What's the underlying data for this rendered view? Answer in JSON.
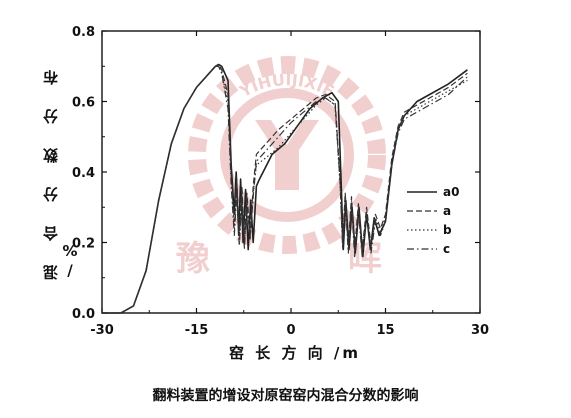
{
  "chart_data": {
    "type": "line",
    "title": "",
    "caption": "翻料装置的增设对原窑窑内混合分数的影响",
    "xlabel": "窑 长 方 向 /m",
    "ylabel": "混 合 分 数 分 布 /%",
    "xlim": [
      -30,
      30
    ],
    "ylim": [
      0.0,
      0.8
    ],
    "xticks": [
      "-30",
      "-15",
      "0",
      "15",
      "30"
    ],
    "yticks": [
      "0.0",
      "0.2",
      "0.4",
      "0.6",
      "0.8"
    ],
    "legend_position": "right-middle",
    "grid": false,
    "series": [
      {
        "name": "a0",
        "style": "solid",
        "color": "#222222",
        "points": [
          [
            -30,
            0.0
          ],
          [
            -27,
            0.0
          ],
          [
            -25,
            0.02
          ],
          [
            -23,
            0.12
          ],
          [
            -21,
            0.32
          ],
          [
            -19,
            0.48
          ],
          [
            -17,
            0.58
          ],
          [
            -15,
            0.64
          ],
          [
            -13,
            0.68
          ],
          [
            -12,
            0.7
          ],
          [
            -11.5,
            0.705
          ],
          [
            -11,
            0.7
          ],
          [
            -10,
            0.66
          ],
          [
            -9.5,
            0.42
          ],
          [
            -9,
            0.28
          ],
          [
            -8.7,
            0.4
          ],
          [
            -8.3,
            0.22
          ],
          [
            -8,
            0.38
          ],
          [
            -7.6,
            0.2
          ],
          [
            -7.2,
            0.35
          ],
          [
            -6.8,
            0.18
          ],
          [
            -6.4,
            0.32
          ],
          [
            -6,
            0.2
          ],
          [
            -5.5,
            0.36
          ],
          [
            -5,
            0.38
          ],
          [
            -3,
            0.45
          ],
          [
            -1,
            0.48
          ],
          [
            1,
            0.53
          ],
          [
            3,
            0.58
          ],
          [
            5,
            0.61
          ],
          [
            6.5,
            0.625
          ],
          [
            7.5,
            0.6
          ],
          [
            8,
            0.35
          ],
          [
            8.3,
            0.18
          ],
          [
            8.7,
            0.32
          ],
          [
            9.2,
            0.18
          ],
          [
            9.7,
            0.3
          ],
          [
            10.2,
            0.17
          ],
          [
            10.8,
            0.3
          ],
          [
            11.4,
            0.16
          ],
          [
            12,
            0.28
          ],
          [
            12.6,
            0.18
          ],
          [
            13.2,
            0.27
          ],
          [
            14,
            0.22
          ],
          [
            15,
            0.26
          ],
          [
            16,
            0.42
          ],
          [
            17,
            0.52
          ],
          [
            18,
            0.56
          ],
          [
            20,
            0.6
          ],
          [
            22,
            0.62
          ],
          [
            25,
            0.65
          ],
          [
            28,
            0.69
          ]
        ]
      },
      {
        "name": "a",
        "style": "dashed",
        "color": "#333333",
        "points": [
          [
            -30,
            0.0
          ],
          [
            -27,
            0.0
          ],
          [
            -25,
            0.02
          ],
          [
            -23,
            0.12
          ],
          [
            -21,
            0.32
          ],
          [
            -19,
            0.48
          ],
          [
            -17,
            0.58
          ],
          [
            -15,
            0.64
          ],
          [
            -13,
            0.68
          ],
          [
            -12,
            0.7
          ],
          [
            -11.5,
            0.705
          ],
          [
            -11,
            0.69
          ],
          [
            -10,
            0.62
          ],
          [
            -9.5,
            0.4
          ],
          [
            -9,
            0.26
          ],
          [
            -8.6,
            0.38
          ],
          [
            -8.2,
            0.22
          ],
          [
            -7.8,
            0.36
          ],
          [
            -7.4,
            0.2
          ],
          [
            -7,
            0.34
          ],
          [
            -6.5,
            0.22
          ],
          [
            -6,
            0.36
          ],
          [
            -5.5,
            0.45
          ],
          [
            -4,
            0.48
          ],
          [
            -2,
            0.52
          ],
          [
            0,
            0.55
          ],
          [
            2,
            0.58
          ],
          [
            4,
            0.61
          ],
          [
            5.5,
            0.62
          ],
          [
            7,
            0.6
          ],
          [
            7.8,
            0.38
          ],
          [
            8.2,
            0.2
          ],
          [
            8.6,
            0.34
          ],
          [
            9.1,
            0.19
          ],
          [
            9.6,
            0.33
          ],
          [
            10.1,
            0.18
          ],
          [
            10.7,
            0.31
          ],
          [
            11.3,
            0.18
          ],
          [
            12,
            0.3
          ],
          [
            12.7,
            0.19
          ],
          [
            13.4,
            0.28
          ],
          [
            14.2,
            0.24
          ],
          [
            15,
            0.28
          ],
          [
            16,
            0.44
          ],
          [
            17,
            0.53
          ],
          [
            18,
            0.57
          ],
          [
            20,
            0.59
          ],
          [
            22,
            0.61
          ],
          [
            25,
            0.64
          ],
          [
            28,
            0.68
          ]
        ]
      },
      {
        "name": "b",
        "style": "dotted",
        "color": "#333333",
        "points": [
          [
            -30,
            0.0
          ],
          [
            -27,
            0.0
          ],
          [
            -25,
            0.02
          ],
          [
            -23,
            0.12
          ],
          [
            -21,
            0.32
          ],
          [
            -19,
            0.48
          ],
          [
            -17,
            0.58
          ],
          [
            -15,
            0.64
          ],
          [
            -13,
            0.68
          ],
          [
            -12,
            0.7
          ],
          [
            -11.5,
            0.7
          ],
          [
            -11,
            0.68
          ],
          [
            -10,
            0.6
          ],
          [
            -9.5,
            0.38
          ],
          [
            -9,
            0.24
          ],
          [
            -8.6,
            0.36
          ],
          [
            -8.2,
            0.2
          ],
          [
            -7.8,
            0.34
          ],
          [
            -7.4,
            0.19
          ],
          [
            -7,
            0.32
          ],
          [
            -6.5,
            0.22
          ],
          [
            -6,
            0.34
          ],
          [
            -5.5,
            0.42
          ],
          [
            -4,
            0.44
          ],
          [
            -2,
            0.47
          ],
          [
            0,
            0.51
          ],
          [
            2,
            0.55
          ],
          [
            4,
            0.59
          ],
          [
            5.5,
            0.61
          ],
          [
            7,
            0.59
          ],
          [
            7.8,
            0.36
          ],
          [
            8.2,
            0.19
          ],
          [
            8.6,
            0.33
          ],
          [
            9.1,
            0.18
          ],
          [
            9.6,
            0.32
          ],
          [
            10.1,
            0.17
          ],
          [
            10.7,
            0.3
          ],
          [
            11.3,
            0.17
          ],
          [
            12,
            0.29
          ],
          [
            12.7,
            0.18
          ],
          [
            13.4,
            0.27
          ],
          [
            14.2,
            0.23
          ],
          [
            15,
            0.27
          ],
          [
            16,
            0.43
          ],
          [
            17,
            0.52
          ],
          [
            18,
            0.56
          ],
          [
            20,
            0.58
          ],
          [
            22,
            0.6
          ],
          [
            25,
            0.63
          ],
          [
            28,
            0.66
          ]
        ]
      },
      {
        "name": "c",
        "style": "dashdot",
        "color": "#333333",
        "points": [
          [
            -30,
            0.0
          ],
          [
            -27,
            0.0
          ],
          [
            -25,
            0.02
          ],
          [
            -23,
            0.12
          ],
          [
            -21,
            0.32
          ],
          [
            -19,
            0.48
          ],
          [
            -17,
            0.58
          ],
          [
            -15,
            0.64
          ],
          [
            -13,
            0.68
          ],
          [
            -12,
            0.7
          ],
          [
            -11.5,
            0.7
          ],
          [
            -11,
            0.68
          ],
          [
            -10,
            0.58
          ],
          [
            -9.5,
            0.36
          ],
          [
            -9,
            0.22
          ],
          [
            -8.6,
            0.34
          ],
          [
            -8.2,
            0.19
          ],
          [
            -7.8,
            0.33
          ],
          [
            -7.4,
            0.18
          ],
          [
            -7,
            0.31
          ],
          [
            -6.5,
            0.21
          ],
          [
            -6,
            0.33
          ],
          [
            -5.5,
            0.43
          ],
          [
            -4,
            0.46
          ],
          [
            -2,
            0.5
          ],
          [
            0,
            0.54
          ],
          [
            2,
            0.57
          ],
          [
            4,
            0.6
          ],
          [
            5.5,
            0.61
          ],
          [
            7,
            0.59
          ],
          [
            7.8,
            0.37
          ],
          [
            8.2,
            0.18
          ],
          [
            8.6,
            0.32
          ],
          [
            9.1,
            0.17
          ],
          [
            9.6,
            0.31
          ],
          [
            10.1,
            0.16
          ],
          [
            10.7,
            0.29
          ],
          [
            11.3,
            0.16
          ],
          [
            12,
            0.28
          ],
          [
            12.7,
            0.17
          ],
          [
            13.4,
            0.26
          ],
          [
            14.2,
            0.22
          ],
          [
            15,
            0.26
          ],
          [
            16,
            0.42
          ],
          [
            17,
            0.51
          ],
          [
            18,
            0.55
          ],
          [
            20,
            0.57
          ],
          [
            22,
            0.59
          ],
          [
            25,
            0.62
          ],
          [
            28,
            0.67
          ]
        ]
      }
    ]
  },
  "watermark": {
    "text_arc": "YIHUIJIXIE",
    "chars": "豫晖",
    "color": "#e8a8a8"
  }
}
